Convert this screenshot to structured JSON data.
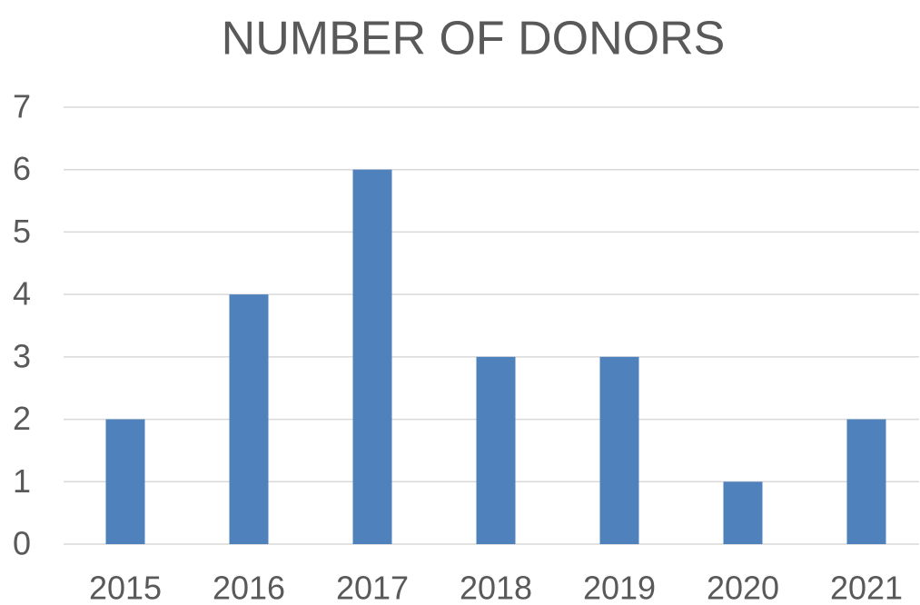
{
  "chart_data": {
    "type": "bar",
    "title": "NUMBER OF DONORS",
    "categories": [
      "2015",
      "2016",
      "2017",
      "2018",
      "2019",
      "2020",
      "2021"
    ],
    "values": [
      2,
      4,
      6,
      3,
      3,
      1,
      2
    ],
    "color": "#4f81bd",
    "ylim": [
      0,
      7
    ],
    "yticks": [
      0,
      1,
      2,
      3,
      4,
      5,
      6,
      7
    ],
    "grid": true
  }
}
